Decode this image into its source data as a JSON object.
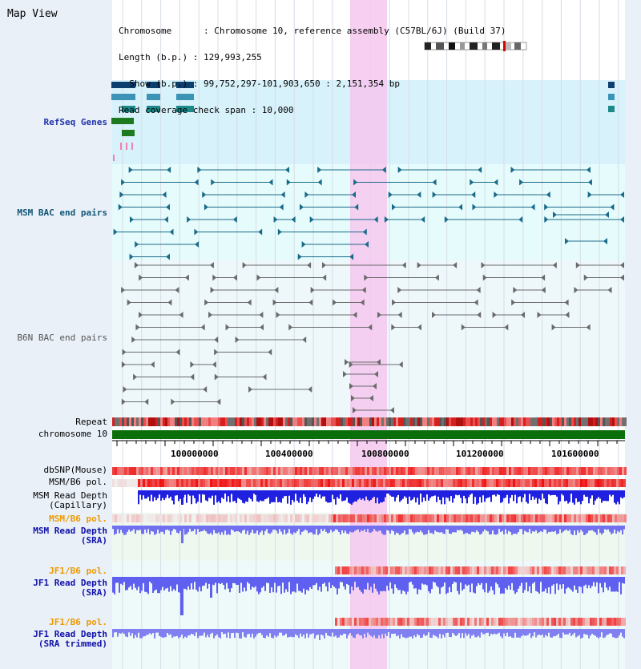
{
  "view": {
    "title": "Map View",
    "info_lines": [
      "Chromosome      : Chromosome 10, reference assembly (C57BL/6J) (Build 37)",
      "Length (b.p.) : 129,993,255",
      "  Show (b.p.) : 99,752,297-101,903,650 : 2,151,354 bp",
      "Read coverage check span : 10,000"
    ]
  },
  "tracks": {
    "refseq": "RefSeq Genes",
    "msm_bac": "MSM BAC end pairs",
    "b6n_bac": "B6N BAC end pairs",
    "repeat": "Repeat",
    "chromosome": "chromosome 10",
    "dbsnp": "dbSNP(Mouse)",
    "msm_b6_pol": "MSM/B6 pol.",
    "msm_depth_cap_1": "MSM Read Depth",
    "msm_depth_cap_2": "(Capillary)",
    "msm_b6_pol_sra": "MSM/B6 pol.",
    "msm_depth_sra_1": "MSM Read Depth",
    "msm_depth_sra_2": "(SRA)",
    "jf1_pol": "JF1/B6 pol.",
    "jf1_depth_1": "JF1 Read Depth",
    "jf1_depth_2": "(SRA)",
    "jf1_pol_trim": "JF1/B6 pol.",
    "jf1_depth_trim_1": "JF1 Read Depth",
    "jf1_depth_trim_2": "(SRA trimmed)"
  },
  "axis": {
    "ticks": [
      "100000000",
      "100400000",
      "100800000",
      "101200000",
      "101600000"
    ]
  },
  "colors": {
    "refseq_text": "#2233aa",
    "bac_text": "#115577",
    "b6n_text": "#555555",
    "orange_text": "#ee9900",
    "blue_text": "#1111aa",
    "highlight": "#f6c8ee",
    "chromosome": "#0a6e0a",
    "refseq_bg": "#d8f2fb",
    "bac_bg": "#e6fbfb"
  }
}
